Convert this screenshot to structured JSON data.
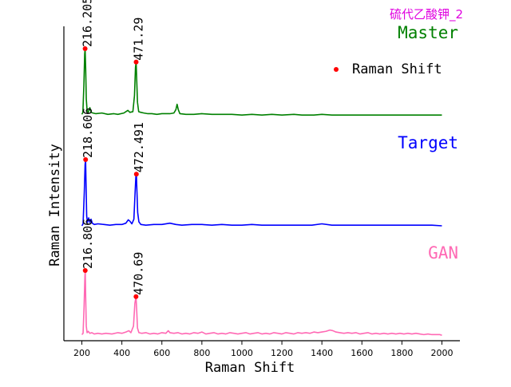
{
  "chart_data": {
    "type": "line",
    "title": "硫代乙酸钾_2",
    "xlabel": "Raman Shift",
    "ylabel": "Raman Intensity",
    "xlim": [
      110,
      2090
    ],
    "x_ticks": [
      200,
      400,
      600,
      800,
      1000,
      1200,
      1400,
      1600,
      1800,
      2000
    ],
    "grid": false,
    "legend": {
      "label": "Raman Shift",
      "position": "top-right"
    },
    "series": [
      {
        "name": "Master",
        "color": "#008000",
        "peaks": [
          {
            "x": 216.205,
            "label": "216.205"
          },
          {
            "x": 471.29,
            "label": "471.29"
          }
        ],
        "points": [
          [
            200,
            0.02
          ],
          [
            205,
            0.05
          ],
          [
            210,
            0.45
          ],
          [
            214,
            0.92
          ],
          [
            216.205,
            1.0
          ],
          [
            219,
            0.7
          ],
          [
            222,
            0.25
          ],
          [
            226,
            0.08
          ],
          [
            232,
            0.05
          ],
          [
            240,
            0.12
          ],
          [
            246,
            0.05
          ],
          [
            255,
            0.04
          ],
          [
            270,
            0.03
          ],
          [
            300,
            0.04
          ],
          [
            330,
            0.02
          ],
          [
            360,
            0.03
          ],
          [
            380,
            0.02
          ],
          [
            410,
            0.04
          ],
          [
            430,
            0.08
          ],
          [
            440,
            0.05
          ],
          [
            455,
            0.06
          ],
          [
            463,
            0.3
          ],
          [
            468,
            0.72
          ],
          [
            471.29,
            0.8
          ],
          [
            474,
            0.55
          ],
          [
            478,
            0.2
          ],
          [
            484,
            0.06
          ],
          [
            495,
            0.05
          ],
          [
            510,
            0.04
          ],
          [
            530,
            0.03
          ],
          [
            550,
            0.03
          ],
          [
            575,
            0.02
          ],
          [
            600,
            0.03
          ],
          [
            640,
            0.03
          ],
          [
            660,
            0.04
          ],
          [
            670,
            0.09
          ],
          [
            676,
            0.17
          ],
          [
            682,
            0.09
          ],
          [
            690,
            0.03
          ],
          [
            720,
            0.02
          ],
          [
            760,
            0.02
          ],
          [
            800,
            0.03
          ],
          [
            850,
            0.02
          ],
          [
            900,
            0.02
          ],
          [
            950,
            0.02
          ],
          [
            1000,
            0.01
          ],
          [
            1050,
            0.02
          ],
          [
            1100,
            0.01
          ],
          [
            1150,
            0.02
          ],
          [
            1200,
            0.01
          ],
          [
            1260,
            0.02
          ],
          [
            1300,
            0.01
          ],
          [
            1360,
            0.01
          ],
          [
            1400,
            0.02
          ],
          [
            1450,
            0.01
          ],
          [
            1500,
            0.01
          ],
          [
            1560,
            0.01
          ],
          [
            1600,
            0.01
          ],
          [
            1650,
            0.01
          ],
          [
            1700,
            0.01
          ],
          [
            1750,
            0.01
          ],
          [
            1800,
            0.01
          ],
          [
            1850,
            0.01
          ],
          [
            1900,
            0.01
          ],
          [
            1950,
            0.01
          ],
          [
            2000,
            0.01
          ]
        ]
      },
      {
        "name": "Target",
        "color": "#0000ff",
        "peaks": [
          {
            "x": 218.606,
            "label": "218.606"
          },
          {
            "x": 472.491,
            "label": "472.491"
          }
        ],
        "points": [
          [
            200,
            0.0
          ],
          [
            206,
            0.03
          ],
          [
            212,
            0.5
          ],
          [
            216,
            0.92
          ],
          [
            218.606,
            1.0
          ],
          [
            221,
            0.6
          ],
          [
            224,
            0.15
          ],
          [
            228,
            0.05
          ],
          [
            234,
            0.12
          ],
          [
            240,
            0.05
          ],
          [
            246,
            0.1
          ],
          [
            252,
            0.04
          ],
          [
            262,
            0.02
          ],
          [
            280,
            0.03
          ],
          [
            310,
            0.02
          ],
          [
            340,
            0.01
          ],
          [
            370,
            0.02
          ],
          [
            400,
            0.02
          ],
          [
            420,
            0.04
          ],
          [
            432,
            0.09
          ],
          [
            440,
            0.07
          ],
          [
            450,
            0.03
          ],
          [
            460,
            0.1
          ],
          [
            466,
            0.5
          ],
          [
            470,
            0.75
          ],
          [
            472.491,
            0.78
          ],
          [
            475,
            0.55
          ],
          [
            479,
            0.2
          ],
          [
            485,
            0.06
          ],
          [
            495,
            0.02
          ],
          [
            520,
            0.01
          ],
          [
            560,
            0.02
          ],
          [
            600,
            0.02
          ],
          [
            640,
            0.04
          ],
          [
            670,
            0.02
          ],
          [
            700,
            0.01
          ],
          [
            750,
            0.02
          ],
          [
            800,
            0.02
          ],
          [
            850,
            0.01
          ],
          [
            900,
            0.02
          ],
          [
            950,
            0.01
          ],
          [
            1000,
            0.01
          ],
          [
            1050,
            0.02
          ],
          [
            1100,
            0.01
          ],
          [
            1150,
            0.01
          ],
          [
            1200,
            0.01
          ],
          [
            1250,
            0.01
          ],
          [
            1300,
            0.01
          ],
          [
            1350,
            0.01
          ],
          [
            1400,
            0.03
          ],
          [
            1450,
            0.01
          ],
          [
            1500,
            0.01
          ],
          [
            1550,
            0.01
          ],
          [
            1600,
            0.01
          ],
          [
            1650,
            0.01
          ],
          [
            1700,
            0.01
          ],
          [
            1750,
            0.01
          ],
          [
            1800,
            0.01
          ],
          [
            1850,
            0.01
          ],
          [
            1900,
            0.01
          ],
          [
            1950,
            0.01
          ],
          [
            2000,
            0.0
          ]
        ]
      },
      {
        "name": "GAN",
        "color": "#ff69b4",
        "peaks": [
          {
            "x": 216.806,
            "label": "216.806"
          },
          {
            "x": 470.69,
            "label": "470.69"
          }
        ],
        "points": [
          [
            200,
            0.02
          ],
          [
            206,
            0.04
          ],
          [
            211,
            0.45
          ],
          [
            215,
            0.9
          ],
          [
            216.806,
            1.0
          ],
          [
            219,
            0.6
          ],
          [
            222,
            0.15
          ],
          [
            226,
            0.05
          ],
          [
            232,
            0.07
          ],
          [
            240,
            0.04
          ],
          [
            250,
            0.05
          ],
          [
            262,
            0.03
          ],
          [
            280,
            0.04
          ],
          [
            300,
            0.03
          ],
          [
            320,
            0.04
          ],
          [
            350,
            0.03
          ],
          [
            380,
            0.05
          ],
          [
            400,
            0.04
          ],
          [
            420,
            0.06
          ],
          [
            435,
            0.08
          ],
          [
            445,
            0.05
          ],
          [
            458,
            0.15
          ],
          [
            465,
            0.5
          ],
          [
            470.69,
            0.6
          ],
          [
            474,
            0.4
          ],
          [
            478,
            0.12
          ],
          [
            485,
            0.05
          ],
          [
            500,
            0.04
          ],
          [
            520,
            0.05
          ],
          [
            540,
            0.03
          ],
          [
            560,
            0.04
          ],
          [
            580,
            0.03
          ],
          [
            600,
            0.05
          ],
          [
            620,
            0.04
          ],
          [
            632,
            0.08
          ],
          [
            640,
            0.05
          ],
          [
            660,
            0.04
          ],
          [
            680,
            0.05
          ],
          [
            700,
            0.03
          ],
          [
            720,
            0.04
          ],
          [
            740,
            0.03
          ],
          [
            760,
            0.05
          ],
          [
            780,
            0.04
          ],
          [
            800,
            0.06
          ],
          [
            820,
            0.03
          ],
          [
            840,
            0.04
          ],
          [
            860,
            0.05
          ],
          [
            880,
            0.03
          ],
          [
            900,
            0.04
          ],
          [
            920,
            0.03
          ],
          [
            940,
            0.05
          ],
          [
            960,
            0.04
          ],
          [
            980,
            0.03
          ],
          [
            1000,
            0.04
          ],
          [
            1020,
            0.05
          ],
          [
            1040,
            0.03
          ],
          [
            1060,
            0.04
          ],
          [
            1080,
            0.05
          ],
          [
            1100,
            0.03
          ],
          [
            1120,
            0.04
          ],
          [
            1140,
            0.03
          ],
          [
            1160,
            0.05
          ],
          [
            1180,
            0.04
          ],
          [
            1200,
            0.03
          ],
          [
            1220,
            0.05
          ],
          [
            1240,
            0.04
          ],
          [
            1260,
            0.03
          ],
          [
            1280,
            0.05
          ],
          [
            1300,
            0.04
          ],
          [
            1320,
            0.05
          ],
          [
            1340,
            0.04
          ],
          [
            1360,
            0.06
          ],
          [
            1380,
            0.05
          ],
          [
            1400,
            0.06
          ],
          [
            1420,
            0.07
          ],
          [
            1440,
            0.09
          ],
          [
            1455,
            0.08
          ],
          [
            1470,
            0.06
          ],
          [
            1490,
            0.05
          ],
          [
            1510,
            0.04
          ],
          [
            1530,
            0.05
          ],
          [
            1550,
            0.04
          ],
          [
            1570,
            0.05
          ],
          [
            1590,
            0.03
          ],
          [
            1610,
            0.04
          ],
          [
            1630,
            0.05
          ],
          [
            1650,
            0.03
          ],
          [
            1670,
            0.04
          ],
          [
            1690,
            0.03
          ],
          [
            1710,
            0.04
          ],
          [
            1730,
            0.03
          ],
          [
            1750,
            0.04
          ],
          [
            1770,
            0.03
          ],
          [
            1790,
            0.04
          ],
          [
            1810,
            0.03
          ],
          [
            1830,
            0.04
          ],
          [
            1850,
            0.03
          ],
          [
            1870,
            0.04
          ],
          [
            1890,
            0.03
          ],
          [
            1910,
            0.02
          ],
          [
            1930,
            0.03
          ],
          [
            1950,
            0.02
          ],
          [
            1970,
            0.02
          ],
          [
            1990,
            0.02
          ],
          [
            2000,
            0.01
          ]
        ]
      }
    ]
  }
}
